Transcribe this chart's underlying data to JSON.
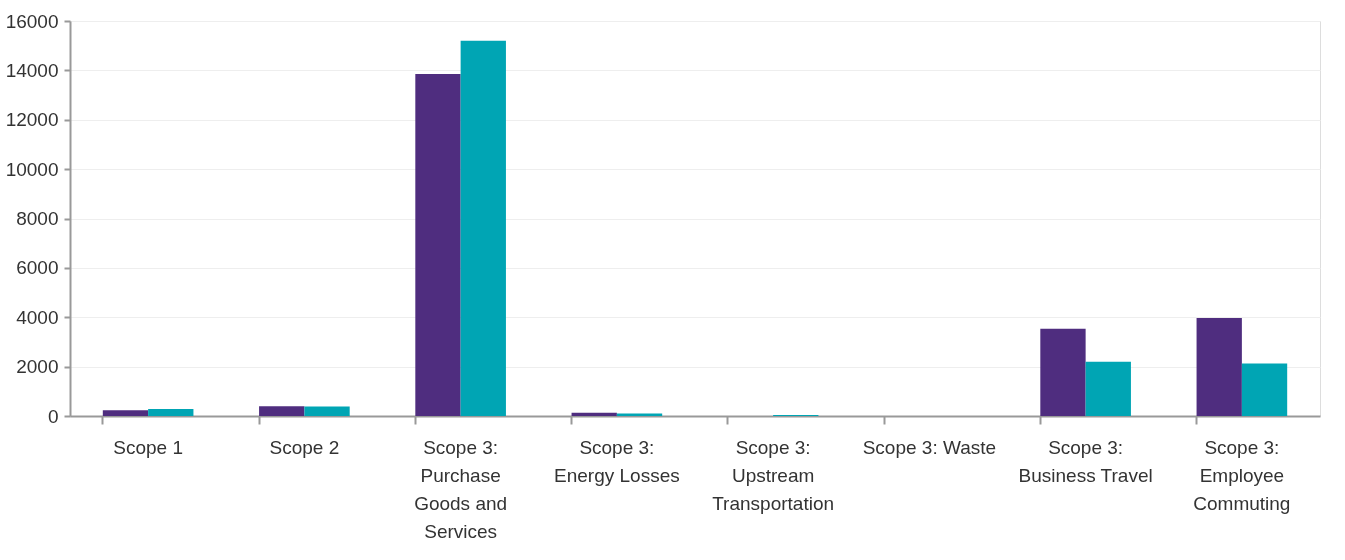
{
  "chart_data": {
    "type": "bar",
    "categories": [
      "Scope 1",
      "Scope 2",
      "Scope 3:\nPurchase\nGoods and\nServices",
      "Scope 3:\nEnergy Losses",
      "Scope 3:\nUpstream\nTransportation",
      "Scope 3: Waste",
      "Scope 3:\nBusiness Travel",
      "Scope 3:\nEmployee\nCommuting"
    ],
    "series": [
      {
        "color": "#4f2d7f",
        "values": [
          230,
          390,
          13850,
          130,
          0,
          0,
          3530,
          3970
        ]
      },
      {
        "color": "#00a5b4",
        "values": [
          280,
          380,
          15200,
          100,
          40,
          0,
          2200,
          2130
        ]
      }
    ],
    "ylim": [
      0,
      16000
    ],
    "yticks": [
      0,
      2000,
      4000,
      6000,
      8000,
      10000,
      12000,
      14000,
      16000
    ],
    "grid": "y",
    "legend": false
  }
}
